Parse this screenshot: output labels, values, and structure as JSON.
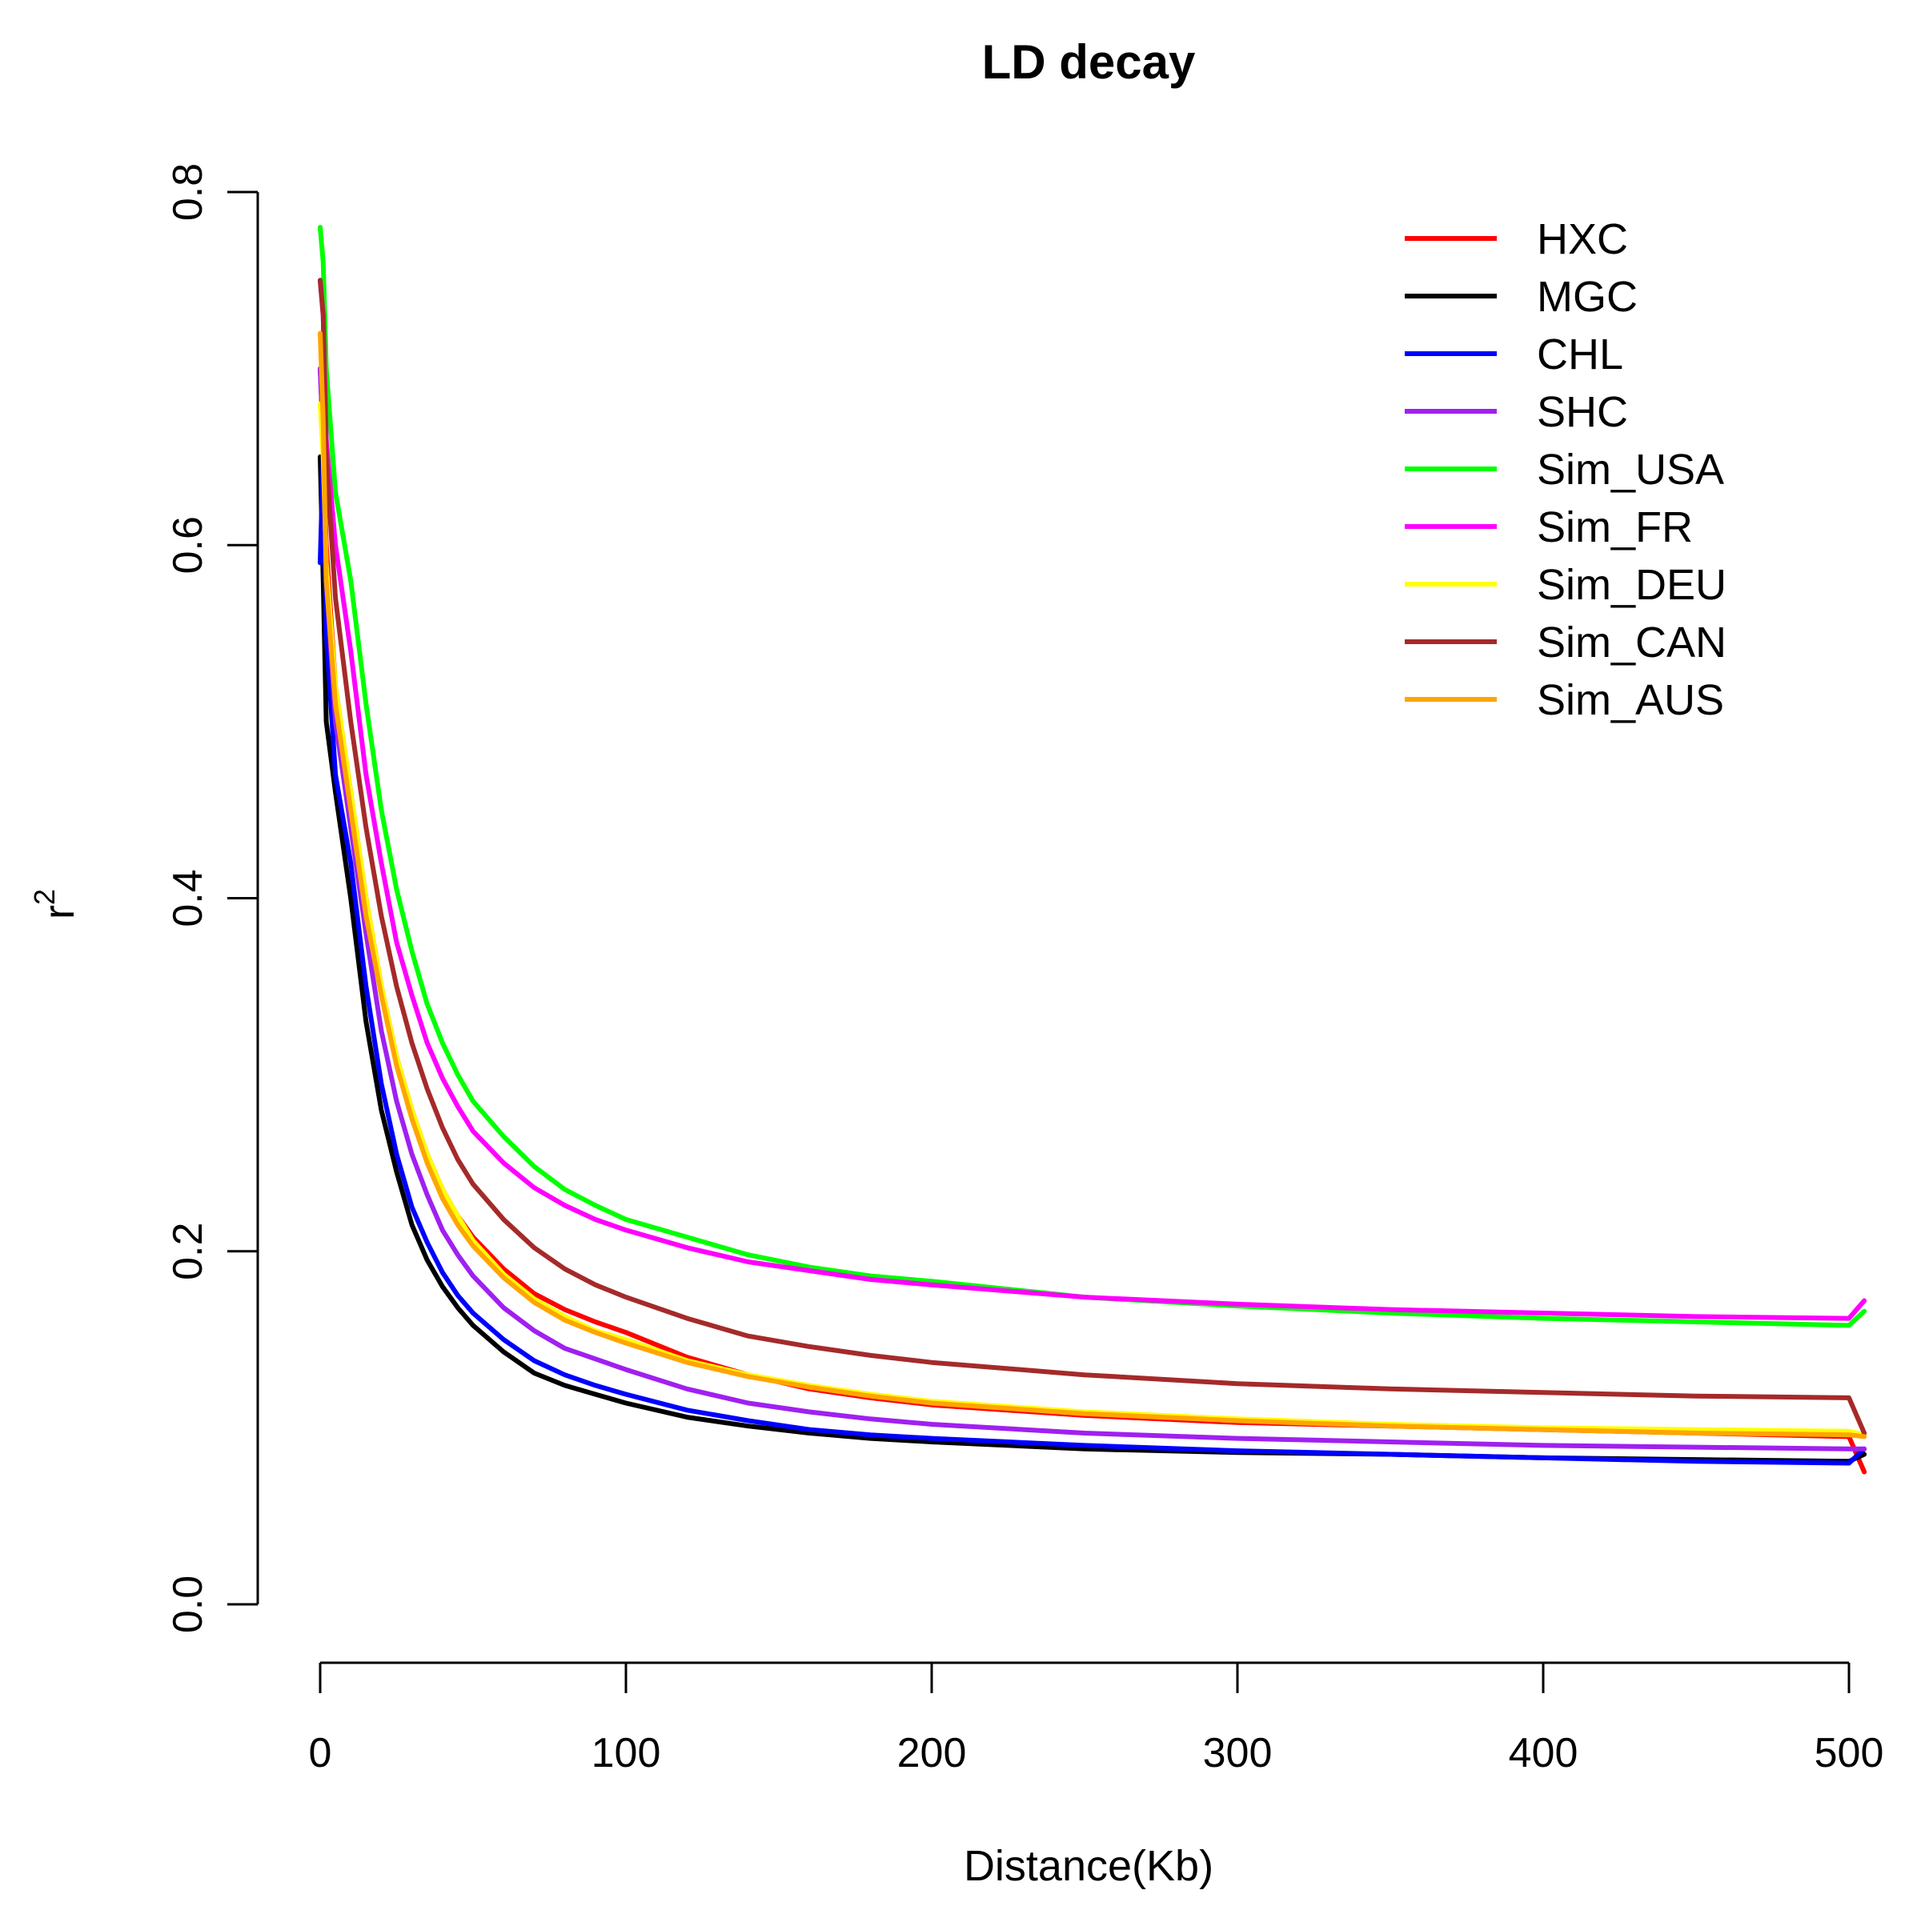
{
  "chart_data": {
    "type": "line",
    "title": "LD decay",
    "xlabel": "Distance(Kb)",
    "ylabel": "r",
    "ylabel_superscript": "2",
    "xlim": [
      0,
      505
    ],
    "ylim": [
      0.0,
      0.8
    ],
    "xticks": [
      0,
      100,
      200,
      300,
      400,
      500
    ],
    "xtick_labels": [
      "0",
      "100",
      "200",
      "300",
      "400",
      "500"
    ],
    "yticks": [
      0.0,
      0.2,
      0.4,
      0.6,
      0.8
    ],
    "ytick_labels": [
      "0.0",
      "0.2",
      "0.4",
      "0.6",
      "0.8"
    ],
    "legend_position": "top-right",
    "grid": false,
    "x": [
      0,
      1,
      2,
      5,
      10,
      15,
      20,
      25,
      30,
      35,
      40,
      45,
      50,
      60,
      70,
      80,
      90,
      100,
      120,
      140,
      160,
      180,
      200,
      250,
      300,
      350,
      400,
      450,
      500,
      505
    ],
    "series": [
      {
        "name": "HXC",
        "color": "#ff0000",
        "values": [
          0.7,
          0.66,
          0.6,
          0.52,
          0.46,
          0.4,
          0.35,
          0.31,
          0.28,
          0.255,
          0.235,
          0.22,
          0.208,
          0.19,
          0.176,
          0.167,
          0.16,
          0.154,
          0.14,
          0.13,
          0.122,
          0.117,
          0.113,
          0.107,
          0.103,
          0.101,
          0.099,
          0.097,
          0.095,
          0.075
        ]
      },
      {
        "name": "MGC",
        "color": "#000000",
        "values": [
          0.65,
          0.58,
          0.5,
          0.46,
          0.4,
          0.33,
          0.28,
          0.245,
          0.215,
          0.195,
          0.18,
          0.168,
          0.158,
          0.143,
          0.131,
          0.124,
          0.119,
          0.114,
          0.106,
          0.101,
          0.097,
          0.094,
          0.092,
          0.088,
          0.086,
          0.085,
          0.083,
          0.082,
          0.081,
          0.085
        ]
      },
      {
        "name": "CHL",
        "color": "#0000ff",
        "values": [
          0.59,
          0.65,
          0.55,
          0.47,
          0.42,
          0.35,
          0.295,
          0.255,
          0.225,
          0.205,
          0.188,
          0.175,
          0.165,
          0.15,
          0.138,
          0.13,
          0.124,
          0.119,
          0.11,
          0.104,
          0.099,
          0.096,
          0.094,
          0.09,
          0.087,
          0.085,
          0.083,
          0.081,
          0.08,
          0.088
        ]
      },
      {
        "name": "SHC",
        "color": "#a020f0",
        "values": [
          0.7,
          0.66,
          0.58,
          0.5,
          0.44,
          0.38,
          0.325,
          0.285,
          0.255,
          0.232,
          0.212,
          0.198,
          0.186,
          0.168,
          0.155,
          0.145,
          0.139,
          0.133,
          0.122,
          0.114,
          0.109,
          0.105,
          0.102,
          0.097,
          0.094,
          0.092,
          0.09,
          0.089,
          0.088,
          0.088
        ]
      },
      {
        "name": "Sim_USA",
        "color": "#00ff00",
        "values": [
          0.78,
          0.76,
          0.7,
          0.63,
          0.58,
          0.51,
          0.45,
          0.405,
          0.37,
          0.34,
          0.318,
          0.3,
          0.285,
          0.265,
          0.248,
          0.235,
          0.226,
          0.218,
          0.208,
          0.198,
          0.191,
          0.186,
          0.183,
          0.174,
          0.169,
          0.165,
          0.162,
          0.16,
          0.158,
          0.166
        ]
      },
      {
        "name": "Sim_FR",
        "color": "#ff00ff",
        "values": [
          0.75,
          0.73,
          0.66,
          0.6,
          0.54,
          0.47,
          0.42,
          0.375,
          0.345,
          0.318,
          0.298,
          0.282,
          0.268,
          0.25,
          0.236,
          0.226,
          0.218,
          0.212,
          0.202,
          0.194,
          0.189,
          0.184,
          0.181,
          0.174,
          0.17,
          0.167,
          0.165,
          0.163,
          0.162,
          0.172
        ]
      },
      {
        "name": "Sim_DEU",
        "color": "#ffff00",
        "values": [
          0.68,
          0.65,
          0.59,
          0.52,
          0.46,
          0.4,
          0.35,
          0.31,
          0.28,
          0.255,
          0.235,
          0.22,
          0.206,
          0.187,
          0.173,
          0.163,
          0.155,
          0.15,
          0.138,
          0.13,
          0.124,
          0.119,
          0.115,
          0.109,
          0.105,
          0.102,
          0.1,
          0.099,
          0.098,
          0.096
        ]
      },
      {
        "name": "Sim_CAN",
        "color": "#a52a2a",
        "values": [
          0.75,
          0.73,
          0.65,
          0.57,
          0.5,
          0.44,
          0.39,
          0.35,
          0.318,
          0.292,
          0.27,
          0.252,
          0.238,
          0.218,
          0.202,
          0.19,
          0.181,
          0.174,
          0.162,
          0.152,
          0.146,
          0.141,
          0.137,
          0.13,
          0.125,
          0.122,
          0.12,
          0.118,
          0.117,
          0.097
        ]
      },
      {
        "name": "Sim_AUS",
        "color": "#ffa500",
        "values": [
          0.72,
          0.67,
          0.58,
          0.51,
          0.45,
          0.39,
          0.345,
          0.305,
          0.275,
          0.25,
          0.23,
          0.215,
          0.203,
          0.185,
          0.171,
          0.161,
          0.154,
          0.148,
          0.137,
          0.129,
          0.123,
          0.118,
          0.114,
          0.108,
          0.104,
          0.101,
          0.099,
          0.097,
          0.096,
          0.095
        ]
      }
    ]
  }
}
